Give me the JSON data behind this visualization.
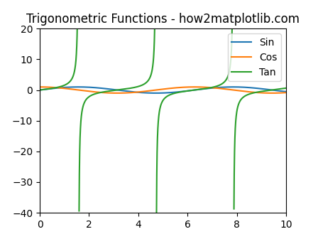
{
  "title": "Trigonometric Functions - how2matplotlib.com",
  "xlim": [
    0,
    10
  ],
  "ylim": [
    -40,
    20
  ],
  "sin_color": "#1f77b4",
  "cos_color": "#ff7f0e",
  "tan_color": "#2ca02c",
  "sin_label": "Sin",
  "cos_label": "Cos",
  "tan_label": "Tan",
  "legend_ncol": 1,
  "legend_loc": "upper right",
  "figsize": [
    4.48,
    3.36
  ],
  "dpi": 100,
  "tan_clip": 40,
  "n_points": 10000
}
